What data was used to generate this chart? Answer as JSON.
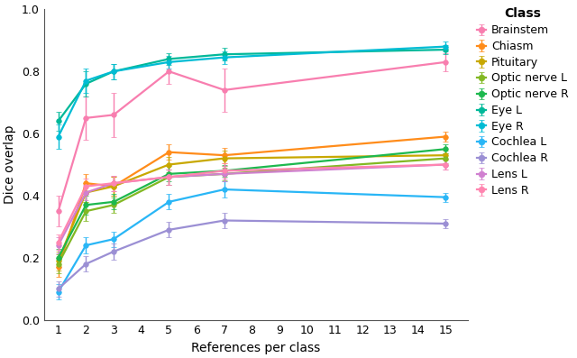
{
  "x": [
    1,
    2,
    3,
    5,
    7,
    15
  ],
  "xlabel": "References per class",
  "ylabel": "Dice overlap",
  "xlim": [
    0.5,
    15.8
  ],
  "ylim": [
    0.0,
    1.0
  ],
  "xticks": [
    1,
    2,
    3,
    4,
    5,
    6,
    7,
    8,
    9,
    10,
    11,
    12,
    13,
    14,
    15
  ],
  "yticks": [
    0.0,
    0.2,
    0.4,
    0.6,
    0.8,
    1.0
  ],
  "legend_title": "Class",
  "series": [
    {
      "label": "Brainstem",
      "color": "#f87eaf",
      "mean": [
        0.35,
        0.65,
        0.66,
        0.8,
        0.74,
        0.83
      ],
      "std": [
        0.05,
        0.07,
        0.07,
        0.04,
        0.07,
        0.03
      ]
    },
    {
      "label": "Chiasm",
      "color": "#ff8c1a",
      "mean": [
        0.17,
        0.44,
        0.43,
        0.54,
        0.53,
        0.59
      ],
      "std": [
        0.03,
        0.03,
        0.03,
        0.025,
        0.025,
        0.015
      ]
    },
    {
      "label": "Pituitary",
      "color": "#c8a800",
      "mean": [
        0.19,
        0.41,
        0.43,
        0.5,
        0.52,
        0.53
      ],
      "std": [
        0.03,
        0.03,
        0.03,
        0.025,
        0.025,
        0.015
      ]
    },
    {
      "label": "Optic nerve L",
      "color": "#82b823",
      "mean": [
        0.18,
        0.35,
        0.37,
        0.46,
        0.47,
        0.52
      ],
      "std": [
        0.03,
        0.03,
        0.025,
        0.025,
        0.02,
        0.015
      ]
    },
    {
      "label": "Optic nerve R",
      "color": "#1db84e",
      "mean": [
        0.2,
        0.37,
        0.38,
        0.47,
        0.48,
        0.55
      ],
      "std": [
        0.03,
        0.03,
        0.025,
        0.025,
        0.02,
        0.015
      ]
    },
    {
      "label": "Eye L",
      "color": "#00b899",
      "mean": [
        0.64,
        0.76,
        0.8,
        0.84,
        0.855,
        0.87
      ],
      "std": [
        0.03,
        0.04,
        0.025,
        0.02,
        0.02,
        0.015
      ]
    },
    {
      "label": "Eye R",
      "color": "#00bcd4",
      "mean": [
        0.59,
        0.77,
        0.8,
        0.83,
        0.845,
        0.88
      ],
      "std": [
        0.04,
        0.04,
        0.025,
        0.02,
        0.02,
        0.015
      ]
    },
    {
      "label": "Cochlea L",
      "color": "#29b6f6",
      "mean": [
        0.09,
        0.24,
        0.26,
        0.38,
        0.42,
        0.395
      ],
      "std": [
        0.025,
        0.025,
        0.025,
        0.025,
        0.025,
        0.015
      ]
    },
    {
      "label": "Cochlea R",
      "color": "#9b8fd4",
      "mean": [
        0.1,
        0.18,
        0.22,
        0.29,
        0.32,
        0.31
      ],
      "std": [
        0.025,
        0.025,
        0.025,
        0.025,
        0.025,
        0.015
      ]
    },
    {
      "label": "Lens L",
      "color": "#d080d0",
      "mean": [
        0.24,
        0.41,
        0.44,
        0.46,
        0.47,
        0.5
      ],
      "std": [
        0.025,
        0.025,
        0.025,
        0.025,
        0.025,
        0.015
      ]
    },
    {
      "label": "Lens R",
      "color": "#ff85b0",
      "mean": [
        0.25,
        0.43,
        0.44,
        0.46,
        0.48,
        0.5
      ],
      "std": [
        0.025,
        0.025,
        0.025,
        0.025,
        0.025,
        0.015
      ]
    }
  ]
}
